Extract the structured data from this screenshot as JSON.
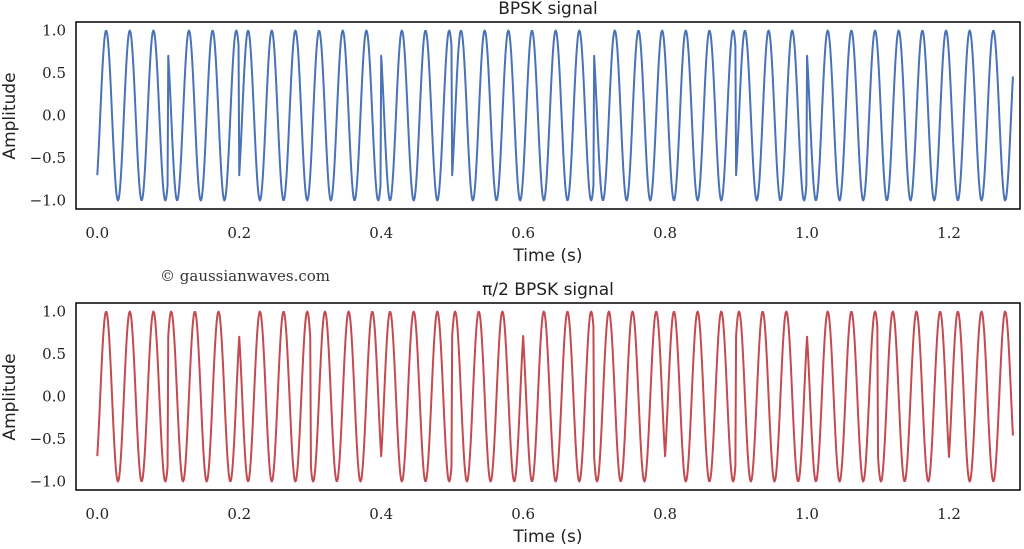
{
  "watermark": "© gaussianwaves.com",
  "chart_data": [
    {
      "type": "line",
      "title": "BPSK signal",
      "xlabel": "Time (s)",
      "ylabel": "Amplitude",
      "xlim": [
        -0.03,
        1.3
      ],
      "ylim": [
        -1.1,
        1.1
      ],
      "xticks": [
        "0.0",
        "0.2",
        "0.4",
        "0.6",
        "0.8",
        "1.0",
        "1.2"
      ],
      "xtick_values": [
        0.0,
        0.2,
        0.4,
        0.6,
        0.8,
        1.0,
        1.2
      ],
      "yticks": [
        "1.0",
        "0.5",
        "0.0",
        "−0.5",
        "−1.0"
      ],
      "ytick_values": [
        1.0,
        0.5,
        0.0,
        -0.5,
        -1.0
      ],
      "grid": false,
      "color": "#4a72b8",
      "carrier_frequency_hz": 30,
      "sample_interval_s": 0.001,
      "duration_s": 1.29,
      "symbol_duration_s": 0.1,
      "phase_offset_rad": -2.35,
      "symbol_phases_rad": [
        0,
        3.14159,
        0,
        0,
        3.14159,
        0,
        0,
        3.14159,
        3.14159,
        0,
        3.14159,
        3.14159,
        3.14159
      ]
    },
    {
      "type": "line",
      "title": "π/2 BPSK signal",
      "xlabel": "Time (s)",
      "ylabel": "Amplitude",
      "xlim": [
        -0.03,
        1.3
      ],
      "ylim": [
        -1.1,
        1.1
      ],
      "xticks": [
        "0.0",
        "0.2",
        "0.4",
        "0.6",
        "0.8",
        "1.0",
        "1.2"
      ],
      "xtick_values": [
        0.0,
        0.2,
        0.4,
        0.6,
        0.8,
        1.0,
        1.2
      ],
      "yticks": [
        "1.0",
        "0.5",
        "0.0",
        "−0.5",
        "−1.0"
      ],
      "ytick_values": [
        1.0,
        0.5,
        0.0,
        -0.5,
        -1.0
      ],
      "grid": false,
      "color": "#c44a52",
      "carrier_frequency_hz": 30,
      "sample_interval_s": 0.001,
      "duration_s": 1.29,
      "symbol_duration_s": 0.1,
      "phase_offset_rad": -2.35,
      "symbol_phases_rad": [
        0,
        1.5708,
        3.14159,
        4.71239,
        0,
        1.5708,
        3.14159,
        4.71239,
        0,
        1.5708,
        3.14159,
        4.71239,
        0
      ]
    }
  ]
}
